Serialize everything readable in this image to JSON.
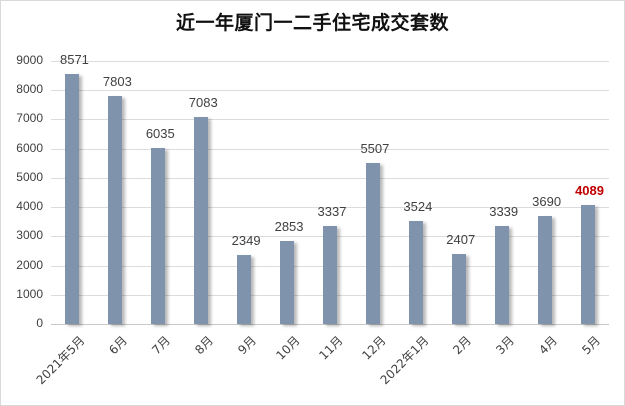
{
  "chart_data": {
    "type": "bar",
    "title": "近一年厦门一二手住宅成交套数",
    "xlabel": "",
    "ylabel": "",
    "categories": [
      "2021年5月",
      "6月",
      "7月",
      "8月",
      "9月",
      "10月",
      "11月",
      "12月",
      "2022年1月",
      "2月",
      "3月",
      "4月",
      "5月"
    ],
    "values": [
      8571,
      7803,
      6035,
      7083,
      2349,
      2853,
      3337,
      5507,
      3524,
      2407,
      3339,
      3690,
      4089
    ],
    "ylim": [
      0,
      9000
    ],
    "yticks": [
      0,
      1000,
      2000,
      3000,
      4000,
      5000,
      6000,
      7000,
      8000,
      9000
    ],
    "grid": true,
    "legend": null,
    "highlight_index": 12,
    "colors": {
      "bar": "#7f93ad",
      "highlight_label": "#c00000",
      "grid": "#dcdcdc"
    }
  }
}
